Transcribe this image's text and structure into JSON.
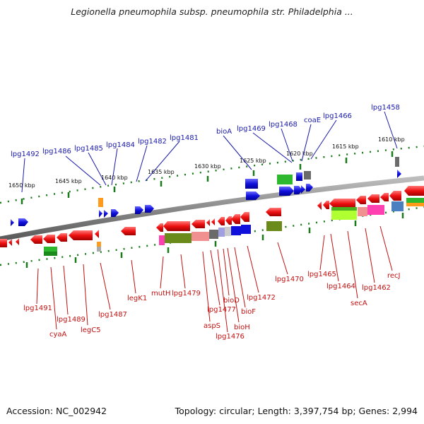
{
  "title": "Legionella pneumophila subsp. pneumophila str. Philadelphia ...",
  "footer": {
    "accession": "Accession: NC_002942",
    "summary": "Topology: circular; Length: 3,397,754 bp; Genes: 2,994"
  },
  "scale_labels": [
    "1650 kbp",
    "1645 kbp",
    "1640 kbp",
    "1635 kbp",
    "1630 kbp",
    "1625 kbp",
    "1620 kbp",
    "1615 kbp",
    "1610 kbp"
  ],
  "top_labels": [
    "lpg1492",
    "lpg1486",
    "lpg1485",
    "lpg1484",
    "lpg1482",
    "lpg1481",
    "bioA",
    "lpg1469",
    "lpg1468",
    "coaE",
    "lpg1466",
    "lpg1458"
  ],
  "bottom_labels": [
    "lpg1491",
    "cyaA",
    "lpg1489",
    "legC5",
    "lpg1487",
    "legK1",
    "mutH",
    "lpg1479",
    "aspS",
    "lpg1477",
    "lpg1476",
    "bioD",
    "bioH",
    "bioF",
    "lpg1472",
    "lpg1470",
    "lpg1465",
    "lpg1464",
    "secA",
    "lpg1462",
    "recJ"
  ],
  "colors": {
    "forward_gene": "#1010dd",
    "reverse_gene": "#ee1010",
    "top_label": "#1a1aaa",
    "bottom_label": "#c21010",
    "scale_tick": "#1a7a1a",
    "backbone": "#888888"
  }
}
